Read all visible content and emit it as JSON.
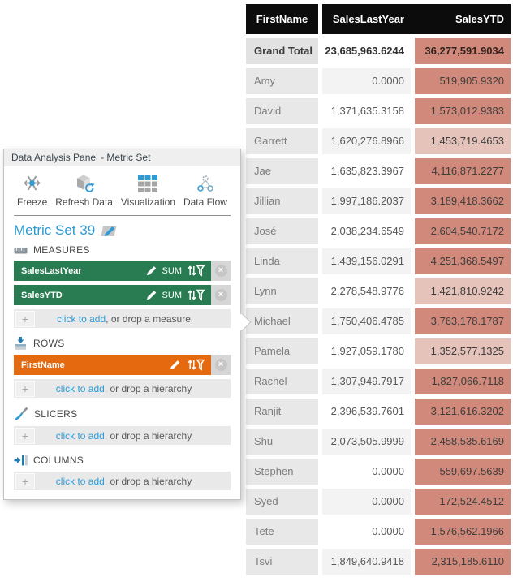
{
  "colors": {
    "accent_blue": "#2E9BD6",
    "measure_green": "#297C51",
    "row_orange": "#E5690F",
    "header_black": "#0c0c0c",
    "ytd_dark": "#D0897A",
    "ytd_light": "#E5C3BA"
  },
  "icons": {
    "plus": "+",
    "close": "×"
  },
  "panel": {
    "title": "Data Analysis Panel - Metric Set",
    "toolbar": [
      {
        "label": "Freeze",
        "icon": "freeze-icon"
      },
      {
        "label": "Refresh Data",
        "icon": "refresh-data-icon"
      },
      {
        "label": "Visualization",
        "icon": "visualization-icon"
      },
      {
        "label": "Data Flow",
        "icon": "data-flow-icon"
      }
    ],
    "metric_set_name": "Metric Set 39",
    "sections": [
      {
        "id": "measures",
        "label": "MEASURES",
        "icon": "measures-icon",
        "pills": [
          {
            "name": "SalesLastYear",
            "aggregator": "SUM",
            "color": "measure_green"
          },
          {
            "name": "SalesYTD",
            "aggregator": "SUM",
            "color": "measure_green"
          }
        ],
        "add_link": "click to add",
        "add_rest": ", or drop a measure"
      },
      {
        "id": "rows",
        "label": "ROWS",
        "icon": "rows-icon",
        "pills": [
          {
            "name": "FirstName",
            "aggregator": "",
            "color": "row_orange"
          }
        ],
        "add_link": "click to add",
        "add_rest": ", or drop a hierarchy"
      },
      {
        "id": "slicers",
        "label": "SLICERS",
        "icon": "slicers-icon",
        "pills": [],
        "add_link": "click to add",
        "add_rest": ", or drop a hierarchy"
      },
      {
        "id": "columns",
        "label": "COLUMNS",
        "icon": "columns-icon",
        "pills": [],
        "add_link": "click to add",
        "add_rest": ", or drop a hierarchy"
      }
    ]
  },
  "table": {
    "columns": [
      "FirstName",
      "SalesLastYear",
      "SalesYTD"
    ],
    "shade_colors": {
      "dark": "#D0897A",
      "light": "#E5C3BA"
    },
    "grand_total": {
      "name": "Grand Total",
      "sales_last_year": "23,685,963.6244",
      "sales_ytd": "36,277,591.9034",
      "ytd_shade": "dark"
    },
    "rows": [
      {
        "name": "Amy",
        "sales_last_year": "0.0000",
        "sales_ytd": "519,905.9320",
        "ytd_shade": "dark"
      },
      {
        "name": "David",
        "sales_last_year": "1,371,635.3158",
        "sales_ytd": "1,573,012.9383",
        "ytd_shade": "dark"
      },
      {
        "name": "Garrett",
        "sales_last_year": "1,620,276.8966",
        "sales_ytd": "1,453,719.4653",
        "ytd_shade": "light"
      },
      {
        "name": "Jae",
        "sales_last_year": "1,635,823.3967",
        "sales_ytd": "4,116,871.2277",
        "ytd_shade": "dark"
      },
      {
        "name": "Jillian",
        "sales_last_year": "1,997,186.2037",
        "sales_ytd": "3,189,418.3662",
        "ytd_shade": "dark"
      },
      {
        "name": "José",
        "sales_last_year": "2,038,234.6549",
        "sales_ytd": "2,604,540.7172",
        "ytd_shade": "dark"
      },
      {
        "name": "Linda",
        "sales_last_year": "1,439,156.0291",
        "sales_ytd": "4,251,368.5497",
        "ytd_shade": "dark"
      },
      {
        "name": "Lynn",
        "sales_last_year": "2,278,548.9776",
        "sales_ytd": "1,421,810.9242",
        "ytd_shade": "light"
      },
      {
        "name": "Michael",
        "sales_last_year": "1,750,406.4785",
        "sales_ytd": "3,763,178.1787",
        "ytd_shade": "dark"
      },
      {
        "name": "Pamela",
        "sales_last_year": "1,927,059.1780",
        "sales_ytd": "1,352,577.1325",
        "ytd_shade": "light"
      },
      {
        "name": "Rachel",
        "sales_last_year": "1,307,949.7917",
        "sales_ytd": "1,827,066.7118",
        "ytd_shade": "dark"
      },
      {
        "name": "Ranjit",
        "sales_last_year": "2,396,539.7601",
        "sales_ytd": "3,121,616.3202",
        "ytd_shade": "dark"
      },
      {
        "name": "Shu",
        "sales_last_year": "2,073,505.9999",
        "sales_ytd": "2,458,535.6169",
        "ytd_shade": "dark"
      },
      {
        "name": "Stephen",
        "sales_last_year": "0.0000",
        "sales_ytd": "559,697.5639",
        "ytd_shade": "dark"
      },
      {
        "name": "Syed",
        "sales_last_year": "0.0000",
        "sales_ytd": "172,524.4512",
        "ytd_shade": "dark"
      },
      {
        "name": "Tete",
        "sales_last_year": "0.0000",
        "sales_ytd": "1,576,562.1966",
        "ytd_shade": "dark"
      },
      {
        "name": "Tsvi",
        "sales_last_year": "1,849,640.9418",
        "sales_ytd": "2,315,185.6110",
        "ytd_shade": "dark"
      }
    ]
  }
}
